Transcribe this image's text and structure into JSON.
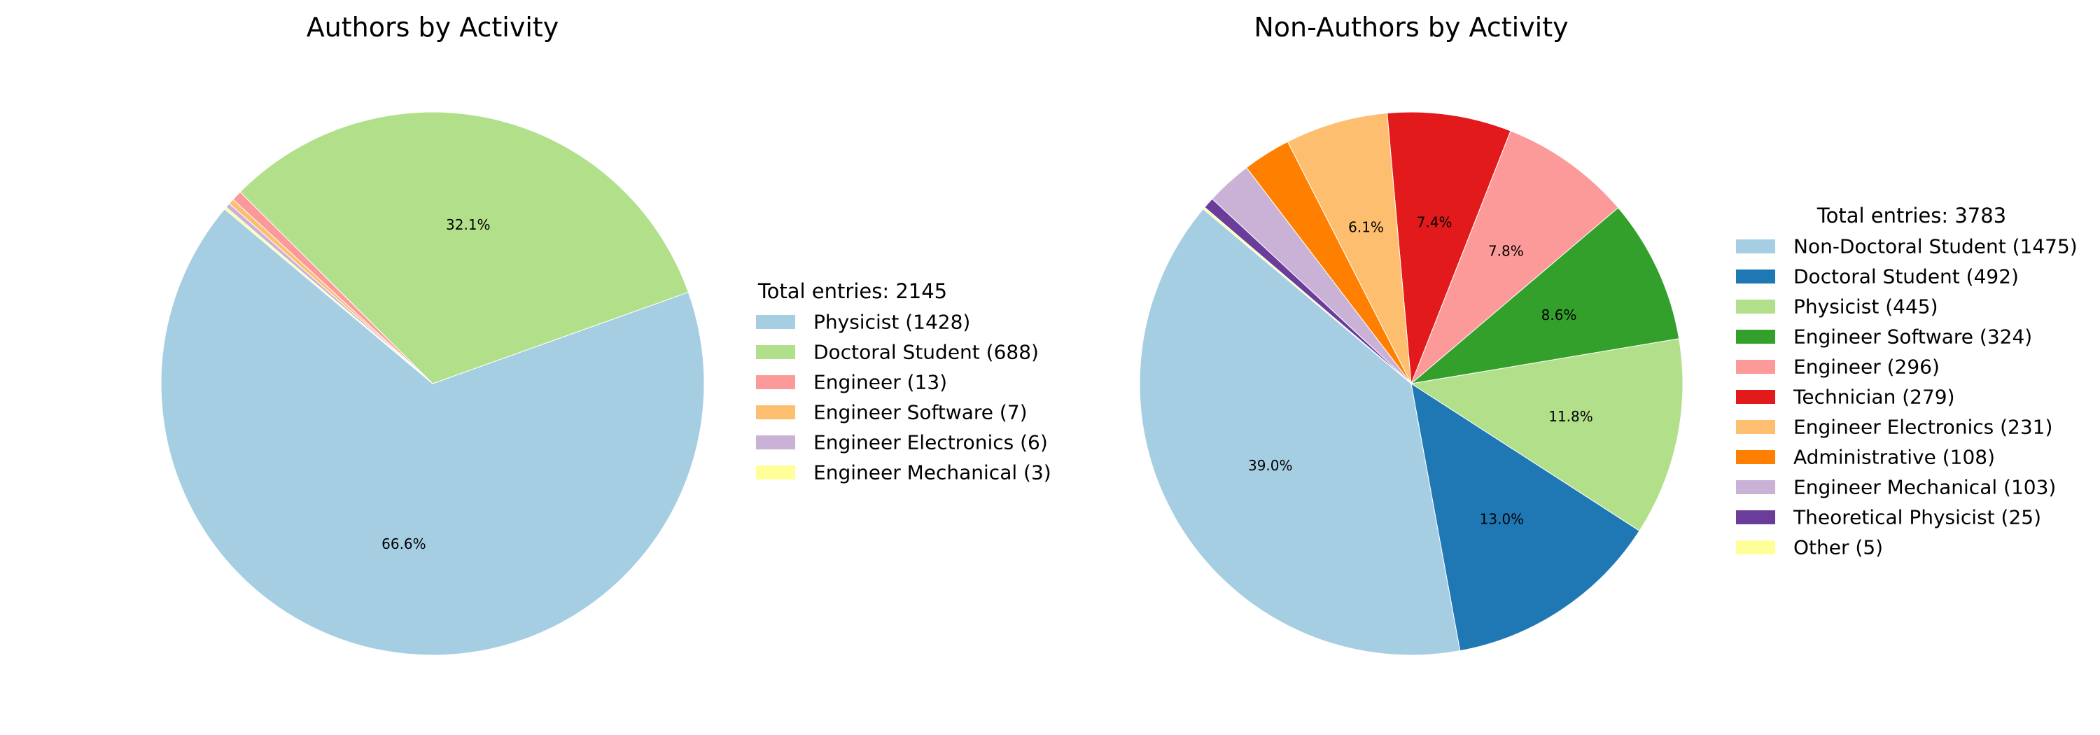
{
  "chart_data": [
    {
      "type": "pie",
      "title": "Authors by Activity",
      "legend_title": "Total entries: 2145",
      "legend_placement": "right",
      "start_angle_deg": 140,
      "min_pct_label": 5,
      "slices": [
        {
          "label": "Physicist (1428)",
          "value": 1428,
          "pct_label": "66.6%",
          "color": "#a6cee3"
        },
        {
          "label": "Doctoral Student (688)",
          "value": 688,
          "pct_label": "32.1%",
          "color": "#b2df8a"
        },
        {
          "label": "Engineer (13)",
          "value": 13,
          "pct_label": "",
          "color": "#fb9a99"
        },
        {
          "label": "Engineer Software (7)",
          "value": 7,
          "pct_label": "",
          "color": "#fdbf6f"
        },
        {
          "label": "Engineer Electronics (6)",
          "value": 6,
          "pct_label": "",
          "color": "#cab2d6"
        },
        {
          "label": "Engineer Mechanical (3)",
          "value": 3,
          "pct_label": "",
          "color": "#ffff99"
        }
      ]
    },
    {
      "type": "pie",
      "title": "Non-Authors by Activity",
      "legend_title": "Total entries: 3783",
      "legend_placement": "right",
      "start_angle_deg": 140,
      "min_pct_label": 5,
      "slices": [
        {
          "label": "Non-Doctoral Student (1475)",
          "value": 1475,
          "pct_label": "39.0%",
          "color": "#a6cee3"
        },
        {
          "label": "Doctoral Student (492)",
          "value": 492,
          "pct_label": "13.0%",
          "color": "#1f78b4"
        },
        {
          "label": "Physicist (445)",
          "value": 445,
          "pct_label": "11.8%",
          "color": "#b2df8a"
        },
        {
          "label": "Engineer Software (324)",
          "value": 324,
          "pct_label": "8.6%",
          "color": "#33a02c"
        },
        {
          "label": "Engineer (296)",
          "value": 296,
          "pct_label": "7.8%",
          "color": "#fb9a99"
        },
        {
          "label": "Technician (279)",
          "value": 279,
          "pct_label": "7.4%",
          "color": "#e31a1c"
        },
        {
          "label": "Engineer Electronics (231)",
          "value": 231,
          "pct_label": "6.1%",
          "color": "#fdbf6f"
        },
        {
          "label": "Administrative (108)",
          "value": 108,
          "pct_label": "",
          "color": "#ff7f00"
        },
        {
          "label": "Engineer Mechanical (103)",
          "value": 103,
          "pct_label": "",
          "color": "#cab2d6"
        },
        {
          "label": "Theoretical Physicist (25)",
          "value": 25,
          "pct_label": "",
          "color": "#6a3d9a"
        },
        {
          "label": "Other (5)",
          "value": 5,
          "pct_label": "",
          "color": "#ffff99"
        }
      ]
    }
  ]
}
